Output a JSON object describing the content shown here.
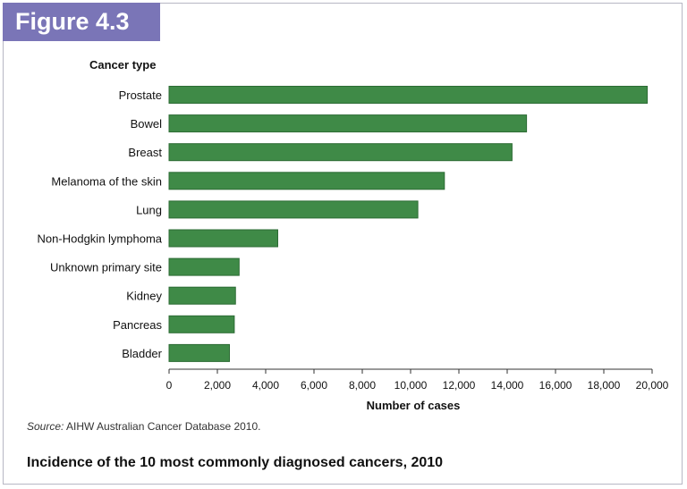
{
  "figure_label": "Figure 4.3",
  "source": {
    "prefix": "Source:",
    "text": " AIHW Australian Cancer Database 2010."
  },
  "caption": "Incidence of the 10 most commonly diagnosed cancers, 2010",
  "colors": {
    "bar": "#3f8a47",
    "bar_stroke": "#2c6b34",
    "label_bg": "#7a75b7",
    "axis": "#333333"
  },
  "chart_data": {
    "type": "bar",
    "orientation": "horizontal",
    "ylabel": "Cancer type",
    "xlabel": "Number of cases",
    "categories": [
      "Prostate",
      "Bowel",
      "Breast",
      "Melanoma of the skin",
      "Lung",
      "Non-Hodgkin lymphoma",
      "Unknown primary site",
      "Kidney",
      "Pancreas",
      "Bladder"
    ],
    "values": [
      19800,
      14800,
      14200,
      11400,
      10300,
      4500,
      2900,
      2750,
      2700,
      2500
    ],
    "xlim": [
      0,
      20000
    ],
    "xticks": [
      0,
      2000,
      4000,
      6000,
      8000,
      10000,
      12000,
      14000,
      16000,
      18000,
      20000
    ],
    "xtick_labels": [
      "0",
      "2,000",
      "4,000",
      "6,000",
      "8,000",
      "10,000",
      "12,000",
      "14,000",
      "16,000",
      "18,000",
      "20,000"
    ],
    "grid": false,
    "legend": false
  }
}
